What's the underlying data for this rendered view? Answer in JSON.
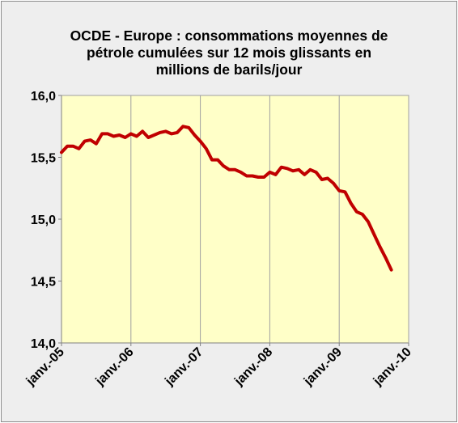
{
  "chart_data": {
    "type": "line",
    "title_lines": [
      "OCDE - Europe : consommations moyennes de",
      "pétrole cumulées sur 12 mois glissants en",
      "millions de barils/jour"
    ],
    "xlabel": "",
    "ylabel": "",
    "ylim": [
      14.0,
      16.0
    ],
    "yticks": [
      "16,0",
      "15,5",
      "15,0",
      "14,5",
      "14,0"
    ],
    "xticks": [
      "janv.-05",
      "janv.-06",
      "janv.-07",
      "janv.-08",
      "janv.-09",
      "janv.-10"
    ],
    "grid": "vertical",
    "legend": "none",
    "colors": {
      "line": "#c00000",
      "plot_bg": "#ffffc8",
      "frame_bg": "#eeeeee",
      "grid": "#a0a0a0"
    },
    "series": [
      {
        "x_start": "janv.-05",
        "x_step": "1 month",
        "values": [
          15.54,
          15.59,
          15.59,
          15.57,
          15.63,
          15.64,
          15.61,
          15.69,
          15.69,
          15.67,
          15.68,
          15.66,
          15.69,
          15.67,
          15.71,
          15.66,
          15.68,
          15.7,
          15.71,
          15.69,
          15.7,
          15.75,
          15.74,
          15.68,
          15.63,
          15.57,
          15.48,
          15.48,
          15.43,
          15.4,
          15.4,
          15.38,
          15.35,
          15.35,
          15.34,
          15.34,
          15.38,
          15.36,
          15.42,
          15.41,
          15.39,
          15.4,
          15.36,
          15.4,
          15.38,
          15.32,
          15.33,
          15.29,
          15.23,
          15.22,
          15.13,
          15.06,
          15.04,
          14.98,
          14.88,
          14.78,
          14.69,
          14.59
        ]
      }
    ]
  }
}
